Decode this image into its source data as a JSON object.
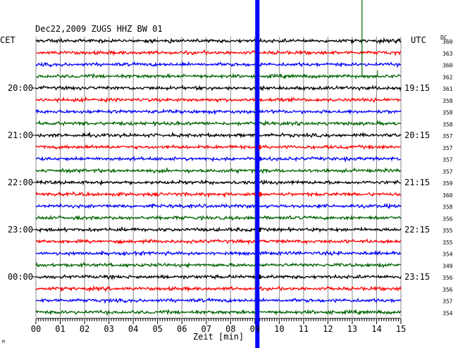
{
  "chart_data": {
    "type": "line",
    "title": "Dec22,2009   ZUGS HHZ BW 01",
    "left_timezone": "CET",
    "right_timezone": "UTC",
    "dc_label": "DC",
    "xlabel": "Zeit [min]",
    "x_ticks": [
      "00",
      "01",
      "02",
      "03",
      "04",
      "05",
      "06",
      "07",
      "08",
      "09",
      "10",
      "11",
      "12",
      "13",
      "14",
      "15"
    ],
    "xlim": [
      0,
      15
    ],
    "left_hour_labels": [
      {
        "row": 4,
        "text": "20:00"
      },
      {
        "row": 8,
        "text": "21:00"
      },
      {
        "row": 12,
        "text": "22:00"
      },
      {
        "row": 16,
        "text": "23:00"
      },
      {
        "row": 20,
        "text": "00:00"
      }
    ],
    "right_hour_labels": [
      {
        "row": 4,
        "text": "19:15"
      },
      {
        "row": 8,
        "text": "20:15"
      },
      {
        "row": 12,
        "text": "21:15"
      },
      {
        "row": 16,
        "text": "22:15"
      },
      {
        "row": 20,
        "text": "23:15"
      }
    ],
    "dc_values": [
      360,
      363,
      360,
      362,
      361,
      358,
      358,
      358,
      357,
      357,
      357,
      357,
      359,
      360,
      358,
      356,
      355,
      355,
      354,
      349,
      356,
      356,
      357,
      354
    ],
    "trace_colors": [
      "#000000",
      "#ff0000",
      "#0000ff",
      "#006400"
    ],
    "event_marker": {
      "minute": 9.1,
      "color": "#0000ff"
    },
    "annotation_line": {
      "minute": 13.4,
      "color": "#006400"
    },
    "footer_mark": "M"
  }
}
